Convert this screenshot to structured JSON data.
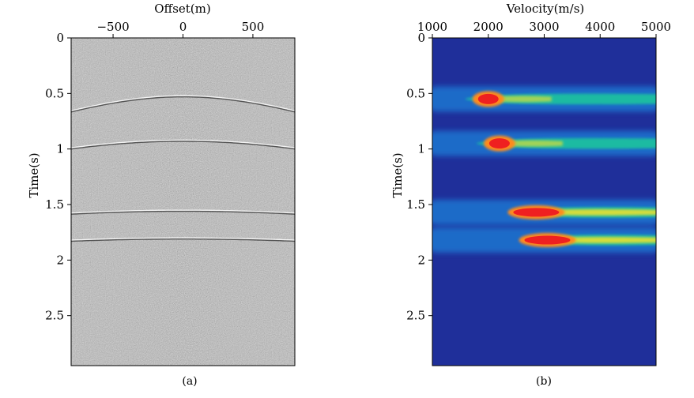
{
  "chart_data": [
    {
      "type": "heatmap",
      "panel_label": "(a)",
      "xlabel": "Offset(m)",
      "ylabel": "Time(s)",
      "xlim": [
        -800,
        800
      ],
      "ylim": [
        0,
        2.95
      ],
      "x_ticks": [
        -500,
        0,
        500
      ],
      "x_tick_labels": [
        "−500",
        "0",
        "500"
      ],
      "y_ticks": [
        0,
        0.5,
        1,
        1.5,
        2,
        2.5
      ],
      "y_tick_labels": [
        "0",
        "0.5",
        "1",
        "1.5",
        "2",
        "2.5"
      ],
      "background_color": "#8e8e8e",
      "events": [
        {
          "t0": 0.52,
          "velocity": 2000
        },
        {
          "t0": 0.92,
          "velocity": 2200
        },
        {
          "t0": 1.55,
          "velocity": 2800
        },
        {
          "t0": 1.8,
          "velocity": 3000
        }
      ]
    },
    {
      "type": "heatmap",
      "panel_label": "(b)",
      "xlabel": "Velocity(m/s)",
      "ylabel": "Time(s)",
      "xlim": [
        1000,
        5000
      ],
      "ylim": [
        0,
        2.95
      ],
      "x_ticks": [
        1000,
        2000,
        3000,
        4000,
        5000
      ],
      "x_tick_labels": [
        "1000",
        "2000",
        "3000",
        "4000",
        "5000"
      ],
      "y_ticks": [
        0,
        0.5,
        1,
        1.5,
        2,
        2.5
      ],
      "y_tick_labels": [
        "0",
        "0.5",
        "1",
        "1.5",
        "2",
        "2.5"
      ],
      "background_color": "#1f2f9a",
      "colormap": [
        "#1f2f9a",
        "#1a7fd8",
        "#1fc0a0",
        "#2ad35a",
        "#e8e030",
        "#ff8a1a",
        "#ef2020"
      ],
      "semblance_peaks": [
        {
          "t0": 0.55,
          "velocity": 2000
        },
        {
          "t0": 0.95,
          "velocity": 2200
        },
        {
          "t0": 1.57,
          "velocity": 2800
        },
        {
          "t0": 1.82,
          "velocity": 3000
        }
      ]
    }
  ]
}
